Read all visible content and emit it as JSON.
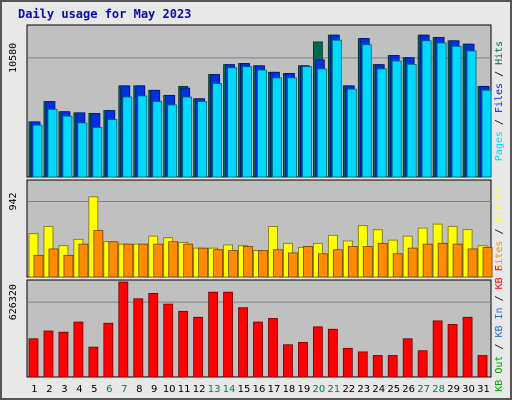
{
  "title": "Daily usage for May 2023",
  "colors": {
    "hits": "#006a50",
    "files": "#0030e0",
    "pages": "#00d8ff",
    "visits": "#ffff00",
    "sites": "#ff8c00",
    "kb_f": "#ff0000",
    "kb_in": "#2a6cc8",
    "kb_out": "#00a000",
    "weekend_tick": "#008040",
    "weekday_tick": "#000000",
    "panel_bg": "#c0c0c0"
  },
  "chart_data": [
    {
      "type": "bar",
      "name": "hits-files-pages",
      "categories": [
        "1",
        "2",
        "3",
        "4",
        "5",
        "6",
        "7",
        "8",
        "9",
        "10",
        "11",
        "12",
        "13",
        "14",
        "15",
        "16",
        "17",
        "18",
        "19",
        "20",
        "21",
        "22",
        "23",
        "24",
        "25",
        "26",
        "27",
        "28",
        "29",
        "30",
        "31"
      ],
      "weekend_days": [
        "6",
        "7",
        "13",
        "14",
        "20",
        "21",
        "27",
        "28"
      ],
      "ylim": [
        0,
        13500
      ],
      "tick_value": "10580",
      "ylabel_parts": [
        {
          "text": "Hits",
          "color_key": "hits"
        },
        {
          "text": " / ",
          "color_key": "weekday_tick"
        },
        {
          "text": "Files",
          "color_key": "files"
        },
        {
          "text": " / ",
          "color_key": "weekday_tick"
        },
        {
          "text": "Pages",
          "color_key": "pages"
        }
      ],
      "series": [
        {
          "name": "Hits",
          "color_key": "hits",
          "values": [
            4900,
            6700,
            5800,
            5700,
            5650,
            5900,
            8100,
            8100,
            7700,
            7250,
            8050,
            6950,
            9100,
            9980,
            10080,
            9880,
            9300,
            9200,
            9880,
            12000,
            12600,
            8100,
            12300,
            9980,
            10800,
            10600,
            12600,
            12400,
            12100,
            11800,
            8050
          ]
        },
        {
          "name": "Files",
          "color_key": "files",
          "values": [
            4900,
            6700,
            5800,
            5700,
            5650,
            5900,
            8100,
            8100,
            7700,
            7250,
            7900,
            6950,
            9100,
            9980,
            10080,
            9880,
            9300,
            9200,
            9880,
            10400,
            12600,
            8100,
            12300,
            9980,
            10800,
            10600,
            12600,
            12400,
            12100,
            11800,
            8050
          ]
        },
        {
          "name": "Pages",
          "color_key": "pages",
          "values": [
            4600,
            6000,
            5400,
            4800,
            4400,
            5100,
            7100,
            7200,
            6700,
            6400,
            7100,
            6700,
            8300,
            9700,
            9800,
            9500,
            8800,
            8800,
            9800,
            9600,
            12150,
            7800,
            11750,
            9600,
            10300,
            10000,
            12100,
            11900,
            11600,
            11200,
            7700
          ]
        }
      ]
    },
    {
      "type": "bar",
      "name": "visits-sites",
      "categories": [
        "1",
        "2",
        "3",
        "4",
        "5",
        "6",
        "7",
        "8",
        "9",
        "10",
        "11",
        "12",
        "13",
        "14",
        "15",
        "16",
        "17",
        "18",
        "19",
        "20",
        "21",
        "22",
        "23",
        "24",
        "25",
        "26",
        "27",
        "28",
        "29",
        "30",
        "31"
      ],
      "ylim": [
        0,
        1210
      ],
      "tick_value": "942",
      "ylabel_parts": [
        {
          "text": "Visits",
          "color_key": "visits"
        },
        {
          "text": " / ",
          "color_key": "weekday_tick"
        },
        {
          "text": "Sites",
          "color_key": "sites"
        }
      ],
      "series": [
        {
          "name": "Visits",
          "color_key": "visits",
          "values": [
            540,
            630,
            390,
            470,
            1000,
            440,
            410,
            410,
            510,
            490,
            430,
            360,
            360,
            400,
            390,
            330,
            630,
            420,
            370,
            420,
            520,
            450,
            640,
            590,
            460,
            510,
            610,
            660,
            630,
            590,
            390
          ]
        },
        {
          "name": "Sites",
          "color_key": "sites",
          "values": [
            270,
            350,
            270,
            410,
            580,
            440,
            410,
            410,
            410,
            440,
            410,
            360,
            340,
            330,
            380,
            330,
            340,
            300,
            380,
            290,
            340,
            380,
            380,
            420,
            290,
            360,
            410,
            420,
            410,
            350,
            370
          ]
        }
      ]
    },
    {
      "type": "bar",
      "name": "kbytes",
      "categories": [
        "1",
        "2",
        "3",
        "4",
        "5",
        "6",
        "7",
        "8",
        "9",
        "10",
        "11",
        "12",
        "13",
        "14",
        "15",
        "16",
        "17",
        "18",
        "19",
        "20",
        "21",
        "22",
        "23",
        "24",
        "25",
        "26",
        "27",
        "28",
        "29",
        "30",
        "31"
      ],
      "ylim": [
        0,
        812000
      ],
      "tick_value": "626320",
      "ylabel_parts": [
        {
          "text": "KB F",
          "color_key": "kb_f"
        },
        {
          "text": " / ",
          "color_key": "weekday_tick"
        },
        {
          "text": "KB In",
          "color_key": "kb_in"
        },
        {
          "text": " / ",
          "color_key": "weekday_tick"
        },
        {
          "text": "KB Out",
          "color_key": "kb_out"
        }
      ],
      "series": [
        {
          "name": "KB F",
          "color_key": "kb_f",
          "values": [
            320000,
            385000,
            375000,
            460000,
            250000,
            450000,
            795000,
            655000,
            700000,
            610000,
            550000,
            500000,
            710000,
            710000,
            580000,
            460000,
            490000,
            270000,
            290000,
            420000,
            400000,
            240000,
            210000,
            180000,
            180000,
            320000,
            220000,
            470000,
            440000,
            500000,
            180000
          ]
        }
      ]
    }
  ]
}
